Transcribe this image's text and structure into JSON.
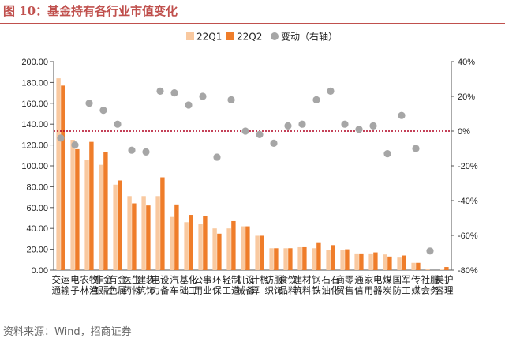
{
  "title": "图 10：基金持有各行业市值变化",
  "source": "资料来源：Wind，招商证券",
  "colors": {
    "q1": "#f9c9a0",
    "q2": "#ef7d2a",
    "change": "#a6a6a6",
    "zero_line": "#b00020"
  },
  "chart_data": {
    "type": "bar",
    "categories": [
      "交通运输",
      "电子",
      "农林牧渔",
      "非银金融",
      "有色金属",
      "医药生物",
      "建筑装饰",
      "电力设备",
      "汽车",
      "基础化工",
      "公用事业",
      "环保",
      "轻工制造",
      "机械设备",
      "计算机",
      "纺织服饰",
      "食品饮料",
      "建筑材料",
      "钢铁",
      "石油石化",
      "商贸零售",
      "通信",
      "家用电器",
      "煤炭",
      "国防军工",
      "传媒",
      "社会服务",
      "美容护理"
    ],
    "series": [
      {
        "name": "22Q1",
        "axis": "left",
        "kind": "bar",
        "values": [
          184,
          125,
          106,
          101,
          82,
          71,
          71,
          71,
          51,
          46,
          44,
          40,
          40,
          42,
          33,
          21,
          21,
          22,
          21,
          19,
          19,
          16,
          16,
          15,
          12,
          7,
          1,
          0.5
        ]
      },
      {
        "name": "22Q2",
        "axis": "left",
        "kind": "bar",
        "values": [
          177,
          116,
          123,
          113,
          86,
          64,
          62,
          89,
          63,
          53,
          52,
          35,
          47,
          42,
          33,
          21,
          21,
          22,
          26,
          24,
          20,
          16,
          17,
          13,
          14,
          7,
          0,
          3
        ]
      },
      {
        "name": "变动（右轴）",
        "axis": "right",
        "kind": "scatter",
        "values": [
          -4,
          -8,
          16,
          12,
          4,
          -11,
          -12,
          23,
          22,
          15,
          20,
          -15,
          18,
          0,
          -2,
          -7,
          3,
          4,
          18,
          23,
          4,
          1,
          3,
          -13,
          9,
          -10,
          -69,
          null
        ]
      }
    ],
    "left_axis": {
      "min": 0,
      "max": 200,
      "step": 20,
      "tick_labels": [
        "0.00",
        "20.00",
        "40.00",
        "60.00",
        "80.00",
        "100.00",
        "120.00",
        "140.00",
        "160.00",
        "180.00",
        "200.00"
      ]
    },
    "right_axis": {
      "min": -80,
      "max": 40,
      "step": 20,
      "tick_labels": [
        "-80%",
        "-60%",
        "-40%",
        "-20%",
        "0%",
        "20%",
        "40%"
      ]
    },
    "legend": [
      "22Q1",
      "22Q2",
      "变动（右轴）"
    ],
    "legend_position": "top-center",
    "grid": false
  }
}
